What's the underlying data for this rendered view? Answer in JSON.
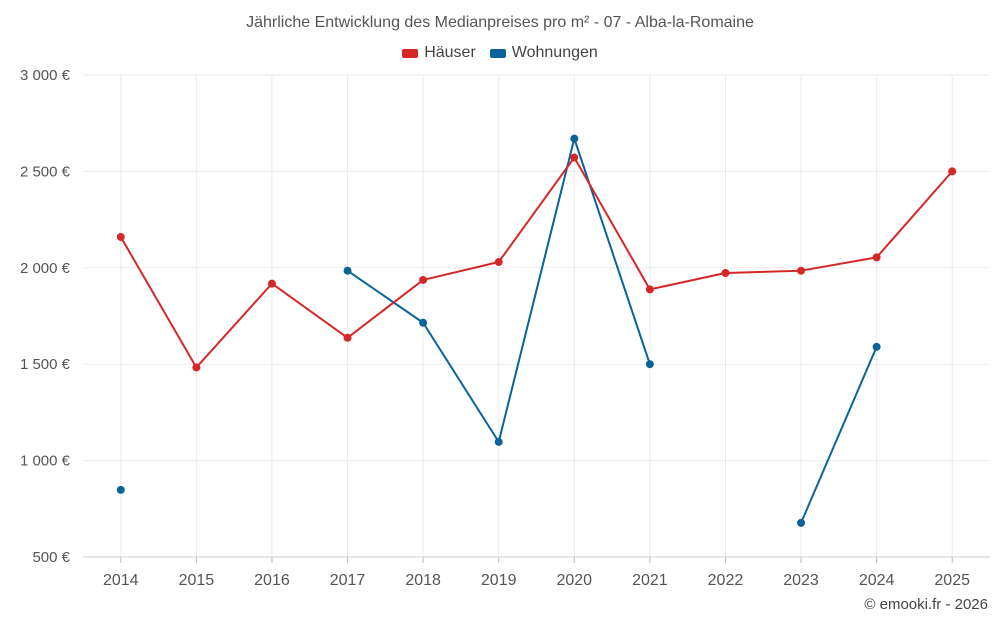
{
  "chart_data": {
    "type": "line",
    "title": "Jährliche Entwicklung des Medianpreises pro m² - 07 - Alba-la-Romaine",
    "xlabel": "",
    "ylabel": "",
    "categories": [
      "2014",
      "2015",
      "2016",
      "2017",
      "2018",
      "2019",
      "2020",
      "2021",
      "2022",
      "2023",
      "2024",
      "2025"
    ],
    "ylim": [
      500,
      3000
    ],
    "yticks": [
      500,
      1000,
      1500,
      2000,
      2500,
      3000
    ],
    "ytick_labels": [
      "500 €",
      "1 000 €",
      "1 500 €",
      "2 000 €",
      "2 500 €",
      "3 000 €"
    ],
    "grid": true,
    "legend_position": "top-center",
    "series": [
      {
        "name": "Häuser",
        "color": "#d62728",
        "values": [
          2160,
          1483,
          1918,
          1637,
          1937,
          2030,
          2572,
          1888,
          1973,
          1985,
          2054,
          2500
        ]
      },
      {
        "name": "Wohnungen",
        "color": "#0a6499",
        "values": [
          848,
          null,
          null,
          1985,
          1715,
          1097,
          2670,
          1500,
          null,
          677,
          1590,
          null
        ]
      }
    ]
  },
  "copyright": "© emooki.fr - 2026"
}
